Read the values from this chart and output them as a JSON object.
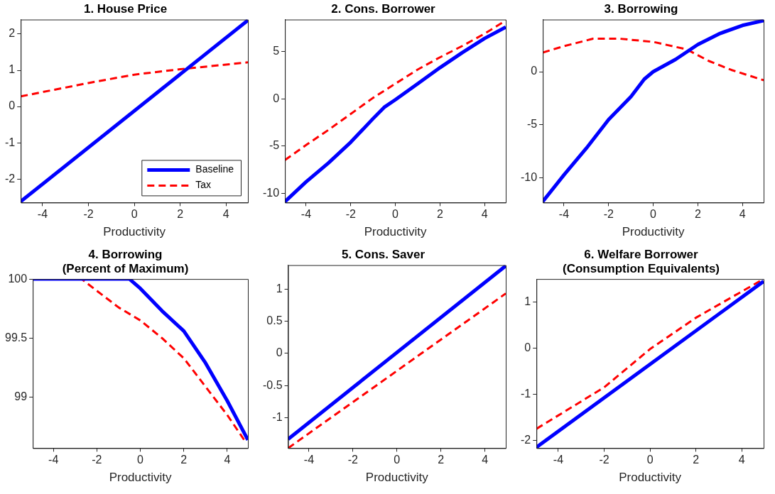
{
  "chart_data": [
    {
      "type": "line",
      "title": [
        "1. House Price"
      ],
      "xlabel": "Productivity",
      "xlim": [
        -4.95,
        4.95
      ],
      "xticks": [
        -4,
        -2,
        0,
        2,
        4
      ],
      "ylim": [
        -2.65,
        2.4
      ],
      "yticks": [
        -2,
        -1,
        0,
        1,
        2
      ],
      "grid": false,
      "marker": "none",
      "legend": "bottom right",
      "series": [
        {
          "name": "Baseline",
          "color": "#0000ff",
          "line_style": "solid",
          "x": [
            -4.95,
            4.95
          ],
          "values": [
            -2.62,
            2.38
          ]
        },
        {
          "name": "Tax",
          "color": "#ff0000",
          "line_style": "dashed",
          "x": [
            -4.95,
            -2,
            0,
            2,
            4.95
          ],
          "values": [
            0.28,
            0.65,
            0.88,
            1.03,
            1.22
          ]
        }
      ]
    },
    {
      "type": "line",
      "title": [
        "2. Cons. Borrower"
      ],
      "xlabel": "Productivity",
      "xlim": [
        -4.95,
        4.95
      ],
      "xticks": [
        -4,
        -2,
        0,
        2,
        4
      ],
      "ylim": [
        -11,
        8.4
      ],
      "yticks": [
        -10,
        -5,
        0,
        5
      ],
      "grid": false,
      "marker": "none",
      "series": [
        {
          "color": "#0000ff",
          "line_style": "solid",
          "x": [
            -4.95,
            -4,
            -3,
            -2,
            -1,
            -0.5,
            0,
            1,
            2,
            3,
            4,
            4.95
          ],
          "values": [
            -10.9,
            -8.8,
            -6.8,
            -4.6,
            -2.1,
            -0.9,
            -0.1,
            1.6,
            3.3,
            4.9,
            6.4,
            7.6
          ]
        },
        {
          "color": "#ff0000",
          "line_style": "dashed",
          "x": [
            -4.95,
            -4,
            -3,
            -2,
            -1,
            0,
            1,
            2,
            3,
            4,
            4.95
          ],
          "values": [
            -6.5,
            -4.9,
            -3.3,
            -1.6,
            0.1,
            1.6,
            3.1,
            4.4,
            5.6,
            6.9,
            8.3
          ]
        }
      ]
    },
    {
      "type": "line",
      "title": [
        "3. Borrowing"
      ],
      "xlabel": "Productivity",
      "xlim": [
        -4.95,
        4.95
      ],
      "xticks": [
        -4,
        -2,
        0,
        2,
        4
      ],
      "ylim": [
        -12.3,
        4.9
      ],
      "yticks": [
        -10,
        -5,
        0
      ],
      "grid": false,
      "marker": "none",
      "series": [
        {
          "color": "#0000ff",
          "line_style": "solid",
          "x": [
            -4.95,
            -4,
            -3,
            -2,
            -1,
            -0.4,
            0,
            1,
            2,
            3,
            4,
            4.95
          ],
          "values": [
            -12.2,
            -9.7,
            -7.2,
            -4.5,
            -2.35,
            -0.7,
            0,
            1.15,
            2.55,
            3.6,
            4.35,
            4.8
          ]
        },
        {
          "color": "#ff0000",
          "line_style": "dashed",
          "x": [
            -4.95,
            -4,
            -2.7,
            -1.5,
            0,
            1.5,
            2.5,
            3.5,
            4.95
          ],
          "values": [
            1.8,
            2.4,
            3.1,
            3.1,
            2.8,
            2.1,
            1.0,
            0.17,
            -0.8
          ]
        }
      ]
    },
    {
      "type": "line",
      "title": [
        "4. Borrowing",
        "(Percent of Maximum)"
      ],
      "xlabel": "Productivity",
      "xlim": [
        -4.95,
        4.95
      ],
      "xticks": [
        -4,
        -2,
        0,
        2,
        4
      ],
      "ylim": [
        98.57,
        100
      ],
      "yticks": [
        99,
        99.5,
        100
      ],
      "grid": false,
      "marker": "none",
      "series": [
        {
          "color": "#0000ff",
          "line_style": "solid",
          "x": [
            -4.95,
            -0.5,
            0,
            1,
            2,
            3,
            4,
            4.95
          ],
          "values": [
            100,
            100,
            99.92,
            99.73,
            99.56,
            99.29,
            98.97,
            98.64
          ]
        },
        {
          "color": "#ff0000",
          "line_style": "dashed",
          "x": [
            -4.95,
            -2.7,
            -2,
            -1,
            0,
            1,
            2,
            3,
            4,
            4.85
          ],
          "values": [
            100,
            100,
            99.9,
            99.76,
            99.65,
            99.5,
            99.33,
            99.09,
            98.85,
            98.62
          ]
        }
      ]
    },
    {
      "type": "line",
      "title": [
        "5. Cons. Saver"
      ],
      "xlabel": "Productivity",
      "xlim": [
        -4.95,
        4.95
      ],
      "xticks": [
        -4,
        -2,
        0,
        2,
        4
      ],
      "ylim": [
        -1.47,
        1.37
      ],
      "yticks": [
        -1,
        -0.5,
        0,
        0.5,
        1
      ],
      "grid": false,
      "marker": "none",
      "series": [
        {
          "color": "#0000ff",
          "line_style": "solid",
          "x": [
            -4.95,
            4.95
          ],
          "values": [
            -1.33,
            1.36
          ]
        },
        {
          "color": "#ff0000",
          "line_style": "dashed",
          "x": [
            -4.95,
            4.95
          ],
          "values": [
            -1.47,
            0.93
          ]
        }
      ]
    },
    {
      "type": "line",
      "title": [
        "6. Welfare Borrower",
        "(Consumption Equivalents)"
      ],
      "xlabel": "Productivity",
      "xlim": [
        -4.95,
        4.95
      ],
      "xticks": [
        -4,
        -2,
        0,
        2,
        4
      ],
      "ylim": [
        -2.17,
        1.5
      ],
      "yticks": [
        -2,
        -1,
        0,
        1
      ],
      "grid": false,
      "marker": "none",
      "series": [
        {
          "color": "#0000ff",
          "line_style": "solid",
          "x": [
            -4.95,
            4.95
          ],
          "values": [
            -2.15,
            1.45
          ]
        },
        {
          "color": "#ff0000",
          "line_style": "dashed",
          "x": [
            -4.95,
            -2,
            0,
            2,
            4.95
          ],
          "values": [
            -1.75,
            -0.85,
            -0.02,
            0.66,
            1.5
          ]
        }
      ]
    }
  ]
}
